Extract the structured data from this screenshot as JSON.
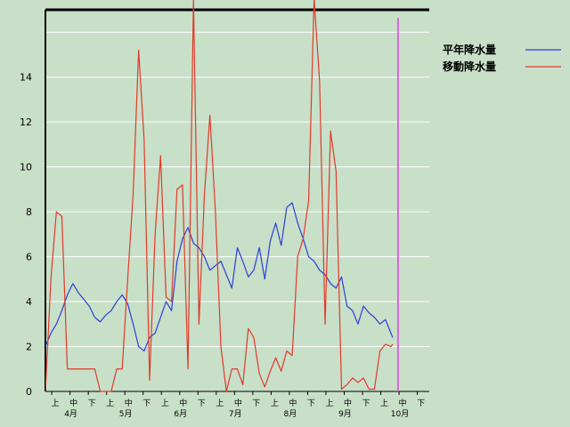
{
  "chart_data": {
    "type": "line",
    "title": "",
    "xlabel": "",
    "ylabel": "",
    "ylim": [
      0,
      17
    ],
    "yticks": [
      0,
      2,
      4,
      6,
      8,
      10,
      12,
      14
    ],
    "grid": "horizontal",
    "legend": "top-right",
    "x_range": [
      0,
      19
    ],
    "dekad_labels": [
      "上",
      "中",
      "下",
      "上",
      "中",
      "下",
      "上",
      "中",
      "下",
      "上",
      "中",
      "下",
      "上",
      "中",
      "下",
      "上",
      "中",
      "下",
      "上",
      "中",
      "下"
    ],
    "dekad_positions": [
      0.2,
      1.2,
      2.2,
      3.2,
      4.2,
      5.2,
      6.2,
      7.2,
      8.2,
      9.2,
      10.2,
      11.2,
      12.2,
      13.2,
      14.2,
      15.2,
      16.2,
      17.2,
      18.2,
      19.2,
      20.2
    ],
    "months": [
      {
        "label": "4月",
        "x": 1.1
      },
      {
        "label": "5月",
        "x": 4.1
      },
      {
        "label": "6月",
        "x": 7.1
      },
      {
        "label": "7月",
        "x": 10.1
      },
      {
        "label": "8月",
        "x": 13.1
      },
      {
        "label": "9月",
        "x": 16.1
      },
      {
        "label": "10月",
        "x": 19.1
      }
    ],
    "series": [
      {
        "name": "平年降水量",
        "color": "#2b3fd6",
        "x": [
          0,
          0.3,
          0.6,
          0.9,
          1.2,
          1.5,
          1.8,
          2.1,
          2.4,
          2.7,
          3.0,
          3.3,
          3.6,
          3.9,
          4.2,
          4.5,
          4.8,
          5.1,
          5.4,
          5.7,
          6.0,
          6.3,
          6.6,
          6.9,
          7.2,
          7.5,
          7.8,
          8.1,
          8.4,
          8.7,
          9.0,
          9.3,
          9.6,
          9.9,
          10.2,
          10.5,
          10.8,
          11.1,
          11.4,
          11.7,
          12.0,
          12.3,
          12.6,
          12.9,
          13.2,
          13.5,
          13.8,
          14.1,
          14.4,
          14.7,
          15.0,
          15.3,
          15.6,
          15.9,
          16.2,
          16.5,
          16.8,
          17.1,
          17.4,
          17.7,
          18.0,
          18.3,
          18.6,
          18.9,
          19.0
        ],
        "values": [
          2.0,
          2.6,
          3.0,
          3.6,
          4.3,
          4.8,
          4.4,
          4.1,
          3.8,
          3.3,
          3.1,
          3.4,
          3.6,
          4.0,
          4.3,
          3.9,
          3.0,
          2.0,
          1.8,
          2.4,
          2.6,
          3.3,
          4.0,
          3.6,
          5.8,
          6.8,
          7.3,
          6.6,
          6.4,
          6.0,
          5.4,
          5.6,
          5.8,
          5.2,
          4.6,
          6.4,
          5.8,
          5.1,
          5.4,
          6.4,
          5.0,
          6.7,
          7.5,
          6.5,
          8.2,
          8.4,
          7.5,
          6.8,
          6.0,
          5.8,
          5.4,
          5.2,
          4.8,
          4.6,
          5.1,
          3.8,
          3.6,
          3.0,
          3.8,
          3.5,
          3.3,
          3.0,
          3.2,
          2.6,
          2.4
        ]
      },
      {
        "name": "移動降水量",
        "color": "#e03a2a",
        "x": [
          0,
          0.3,
          0.6,
          0.9,
          1.2,
          1.5,
          1.8,
          2.1,
          2.4,
          2.7,
          3.0,
          3.3,
          3.6,
          3.9,
          4.2,
          4.5,
          4.8,
          5.1,
          5.4,
          5.7,
          6.0,
          6.3,
          6.6,
          6.9,
          7.2,
          7.5,
          7.8,
          8.1,
          8.4,
          8.7,
          9.0,
          9.3,
          9.6,
          9.9,
          10.2,
          10.5,
          10.8,
          11.1,
          11.4,
          11.7,
          12.0,
          12.3,
          12.6,
          12.9,
          13.2,
          13.5,
          13.8,
          14.1,
          14.4,
          14.7,
          15.0,
          15.3,
          15.6,
          15.9,
          16.2,
          16.5,
          16.8,
          17.1,
          17.4,
          17.7,
          18.0,
          18.3,
          18.6,
          18.9,
          19.0
        ],
        "values": [
          0,
          5.0,
          8.0,
          7.8,
          1.0,
          1.0,
          1.0,
          1.0,
          1.0,
          1.0,
          0,
          0,
          0,
          1.0,
          1.0,
          5.0,
          8.8,
          15.2,
          11.2,
          0.5,
          7.0,
          10.5,
          4.2,
          4.0,
          9.0,
          9.2,
          1.0,
          17.5,
          3.0,
          8.8,
          12.3,
          8.0,
          2.0,
          0,
          1.0,
          1.0,
          0.3,
          2.8,
          2.4,
          0.8,
          0.2,
          0.9,
          1.5,
          0.9,
          1.8,
          1.6,
          6.0,
          6.8,
          8.5,
          17.5,
          13.8,
          3.0,
          11.6,
          9.8,
          0.1,
          0.3,
          0.6,
          0.4,
          0.6,
          0.1,
          0.1,
          1.8,
          2.1,
          2.0,
          2.1
        ]
      }
    ],
    "current_marker_x": 19.0,
    "current_marker_color": "#d86ad8"
  }
}
